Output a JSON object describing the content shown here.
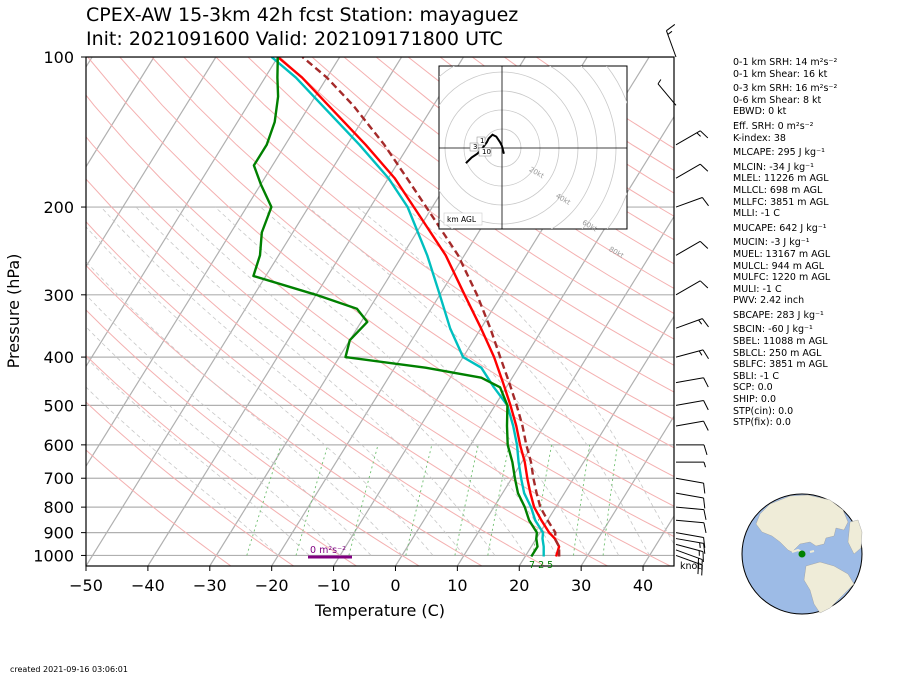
{
  "title": {
    "line1": "CPEX-AW 15-3km  42h fcst  Station: mayaguez",
    "line2": "Init: 2021091600  Valid: 202109171800 UTC"
  },
  "chart_data": {
    "type": "line",
    "subtype": "skew-T log-P",
    "xlabel": "Temperature (C)",
    "ylabel": "Pressure (hPa)",
    "xlim": [
      -50,
      45
    ],
    "ylim": [
      1050,
      100
    ],
    "y_scale": "log",
    "x_ticks": [
      -50,
      -40,
      -30,
      -20,
      -10,
      0,
      10,
      20,
      30,
      40
    ],
    "y_ticks": [
      100,
      200,
      300,
      400,
      500,
      600,
      700,
      800,
      900,
      1000
    ],
    "series": [
      {
        "role": "temperature",
        "color": "#ff0000",
        "points": [
          [
            1005,
            25
          ],
          [
            960,
            24.5
          ],
          [
            925,
            23
          ],
          [
            900,
            21.5
          ],
          [
            850,
            19
          ],
          [
            800,
            16.5
          ],
          [
            750,
            14.5
          ],
          [
            700,
            12.5
          ],
          [
            650,
            10.5
          ],
          [
            600,
            8
          ],
          [
            550,
            5.5
          ],
          [
            500,
            2.5
          ],
          [
            450,
            -1
          ],
          [
            400,
            -5
          ],
          [
            350,
            -10
          ],
          [
            300,
            -16
          ],
          [
            250,
            -23
          ],
          [
            200,
            -33
          ],
          [
            175,
            -39
          ],
          [
            150,
            -47
          ],
          [
            125,
            -57
          ],
          [
            110,
            -64
          ],
          [
            100,
            -70
          ]
        ]
      },
      {
        "role": "virtual temperature",
        "color": "#00bfbf",
        "points": [
          [
            1005,
            23
          ],
          [
            960,
            22
          ],
          [
            925,
            21
          ],
          [
            900,
            20.5
          ],
          [
            850,
            18
          ],
          [
            800,
            16
          ],
          [
            750,
            13.5
          ],
          [
            700,
            11.5
          ],
          [
            650,
            9.5
          ],
          [
            600,
            7.5
          ],
          [
            550,
            5
          ],
          [
            500,
            2
          ],
          [
            460,
            -2
          ],
          [
            420,
            -6
          ],
          [
            400,
            -10
          ],
          [
            350,
            -15
          ],
          [
            300,
            -20
          ],
          [
            250,
            -26
          ],
          [
            200,
            -34
          ],
          [
            175,
            -40
          ],
          [
            150,
            -48
          ],
          [
            125,
            -58
          ],
          [
            110,
            -65
          ],
          [
            100,
            -71
          ]
        ]
      },
      {
        "role": "dewpoint",
        "color": "#008000",
        "points": [
          [
            1005,
            21
          ],
          [
            960,
            21
          ],
          [
            925,
            20
          ],
          [
            900,
            19.5
          ],
          [
            850,
            17
          ],
          [
            800,
            15
          ],
          [
            750,
            12.5
          ],
          [
            700,
            10.5
          ],
          [
            650,
            8.5
          ],
          [
            600,
            6
          ],
          [
            550,
            4
          ],
          [
            500,
            2
          ],
          [
            460,
            -1
          ],
          [
            440,
            -5
          ],
          [
            420,
            -15
          ],
          [
            400,
            -29
          ],
          [
            370,
            -30
          ],
          [
            340,
            -29
          ],
          [
            320,
            -32
          ],
          [
            300,
            -40
          ],
          [
            275,
            -52
          ],
          [
            250,
            -53
          ],
          [
            225,
            -55
          ],
          [
            200,
            -56
          ],
          [
            180,
            -60
          ],
          [
            165,
            -63
          ],
          [
            150,
            -63
          ],
          [
            135,
            -64
          ],
          [
            120,
            -66
          ],
          [
            110,
            -68
          ],
          [
            100,
            -70
          ]
        ]
      },
      {
        "role": "parcel",
        "color": "#a52a2a",
        "dashed": true,
        "points": [
          [
            1005,
            25.5
          ],
          [
            960,
            24.5
          ],
          [
            925,
            23
          ],
          [
            900,
            22.5
          ],
          [
            850,
            20
          ],
          [
            800,
            17.5
          ],
          [
            750,
            15.5
          ],
          [
            700,
            13.5
          ],
          [
            650,
            11.5
          ],
          [
            600,
            9
          ],
          [
            550,
            6.5
          ],
          [
            500,
            3.5
          ],
          [
            450,
            0
          ],
          [
            400,
            -4
          ],
          [
            350,
            -8.5
          ],
          [
            300,
            -14
          ],
          [
            250,
            -21
          ],
          [
            200,
            -31
          ],
          [
            175,
            -37
          ],
          [
            150,
            -44
          ],
          [
            125,
            -53
          ],
          [
            110,
            -60
          ],
          [
            100,
            -66
          ]
        ]
      }
    ],
    "wind_barbs": [
      {
        "p": 1000,
        "speed": 20,
        "dir": 110
      },
      {
        "p": 975,
        "speed": 20,
        "dir": 110
      },
      {
        "p": 950,
        "speed": 15,
        "dir": 105
      },
      {
        "p": 925,
        "speed": 15,
        "dir": 100
      },
      {
        "p": 900,
        "speed": 10,
        "dir": 100
      },
      {
        "p": 850,
        "speed": 10,
        "dir": 95
      },
      {
        "p": 800,
        "speed": 10,
        "dir": 95
      },
      {
        "p": 750,
        "speed": 10,
        "dir": 100
      },
      {
        "p": 700,
        "speed": 10,
        "dir": 100
      },
      {
        "p": 650,
        "speed": 5,
        "dir": 90
      },
      {
        "p": 600,
        "speed": 10,
        "dir": 90
      },
      {
        "p": 550,
        "speed": 10,
        "dir": 80
      },
      {
        "p": 500,
        "speed": 10,
        "dir": 80
      },
      {
        "p": 450,
        "speed": 10,
        "dir": 80
      },
      {
        "p": 400,
        "speed": 15,
        "dir": 75
      },
      {
        "p": 350,
        "speed": 15,
        "dir": 70
      },
      {
        "p": 300,
        "speed": 10,
        "dir": 60
      },
      {
        "p": 250,
        "speed": 10,
        "dir": 60
      },
      {
        "p": 200,
        "speed": 10,
        "dir": 70
      },
      {
        "p": 175,
        "speed": 10,
        "dir": 60
      },
      {
        "p": 150,
        "speed": 15,
        "dir": 60
      },
      {
        "p": 125,
        "speed": 5,
        "dir": 320
      },
      {
        "p": 100,
        "speed": 15,
        "dir": 340
      }
    ],
    "annotations": {
      "wind_unit": "knot",
      "srh_bar_label": "0 m²s⁻²",
      "lcl_labels": "7 2 5"
    },
    "hodograph": {
      "label": "km AGL",
      "ring_labels": [
        "20kt",
        "40kt",
        "60kt",
        "80kt"
      ],
      "height_labels": [
        "1",
        "3",
        "10"
      ]
    }
  },
  "indices": [
    "0-1 km SRH: 14 m²s⁻²",
    "0-1 km Shear: 16 kt",
    "0-3 km SRH: 16 m²s⁻²",
    "0-6 km Shear: 8 kt",
    "EBWD: 0 kt",
    "Eff. SRH: 0 m²s⁻²",
    "K-index: 38",
    "MLCAPE: 295 J kg⁻¹",
    "MLCIN: -34 J kg⁻¹",
    "MLEL: 11226 m AGL",
    "MLLCL: 698 m AGL",
    "MLLFC: 3851 m AGL",
    "MLLI: -1 C",
    "MUCAPE: 642 J kg⁻¹",
    "MUCIN: -3 J kg⁻¹",
    "MUEL: 13167 m AGL",
    "MULCL: 944 m AGL",
    "MULFC: 1220 m AGL",
    "MULI: -1 C",
    "PWV: 2.42 inch",
    "SBCAPE: 283 J kg⁻¹",
    "SBCIN: -60 J kg⁻¹",
    "SBEL: 11088 m AGL",
    "SBLCL: 250 m AGL",
    "SBLFC: 3851 m AGL",
    "SBLI: -1 C",
    "SCP: 0.0",
    "SHIP: 0.0",
    "STP(cin): 0.0",
    "STP(fix): 0.0"
  ],
  "footer": {
    "created": "created 2021-09-16 03:06:01"
  },
  "colors": {
    "temperature": "#ff0000",
    "dewpoint": "#008000",
    "virtual_temperature": "#00bfbf",
    "parcel": "#a52a2a",
    "isotherm": "#b0b0b0",
    "dry_adiabat": "#f4b0b0",
    "moist_adiabat": "#c8c8c8",
    "mixing_ratio": "#6fbf6f",
    "srh_bar": "#800080",
    "ocean": "#9dbbe6",
    "land": "#efecd8",
    "station": "#008000"
  }
}
